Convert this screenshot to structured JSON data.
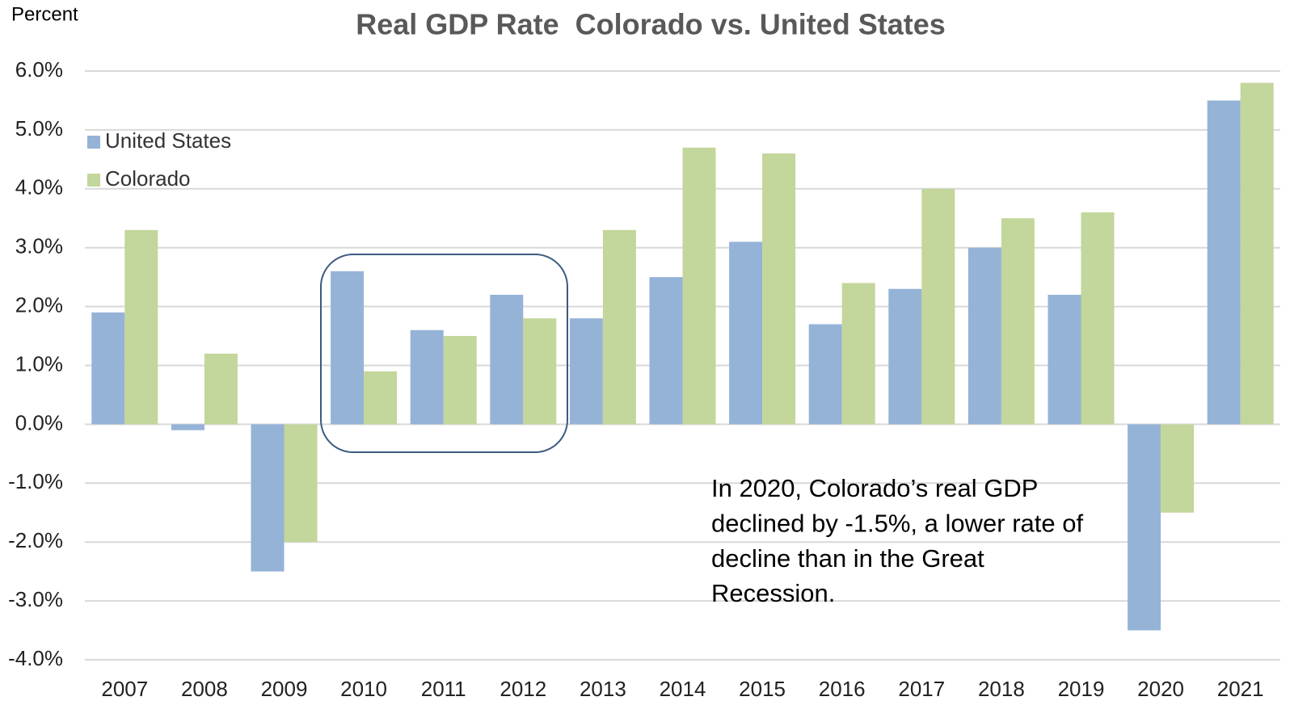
{
  "chart_data": {
    "type": "bar",
    "title": "Real GDP Rate  Colorado vs. United States",
    "y_label": "Percent",
    "categories": [
      "2007",
      "2008",
      "2009",
      "2010",
      "2011",
      "2012",
      "2013",
      "2014",
      "2015",
      "2016",
      "2017",
      "2018",
      "2019",
      "2020",
      "2021"
    ],
    "series": [
      {
        "name": "United States",
        "color": "#95b3d7",
        "values": [
          1.9,
          -0.1,
          -2.5,
          2.6,
          1.6,
          2.2,
          1.8,
          2.5,
          3.1,
          1.7,
          2.3,
          3.0,
          2.2,
          -3.5,
          5.5
        ]
      },
      {
        "name": "Colorado",
        "color": "#c3d69b",
        "values": [
          3.3,
          1.2,
          -2.0,
          0.9,
          1.5,
          1.8,
          3.3,
          4.7,
          4.6,
          2.4,
          4.0,
          3.5,
          3.6,
          -1.5,
          5.8
        ]
      }
    ],
    "ylim": [
      -4,
      6
    ],
    "yticks": [
      {
        "value": -4,
        "label": "-4.0%"
      },
      {
        "value": -3,
        "label": "-3.0%"
      },
      {
        "value": -2,
        "label": "-2.0%"
      },
      {
        "value": -1,
        "label": "-1.0%"
      },
      {
        "value": 0,
        "label": "0.0%"
      },
      {
        "value": 1,
        "label": "1.0%"
      },
      {
        "value": 2,
        "label": "2.0%"
      },
      {
        "value": 3,
        "label": "3.0%"
      },
      {
        "value": 4,
        "label": "4.0%"
      },
      {
        "value": 5,
        "label": "5.0%"
      },
      {
        "value": 6,
        "label": "6.0%"
      }
    ],
    "grid": true,
    "legend": "upper left",
    "annotation": [
      "In 2020, Colorado’s real GDP",
      "declined by -1.5%, a lower rate of",
      "decline than in the Great",
      "Recession."
    ]
  }
}
